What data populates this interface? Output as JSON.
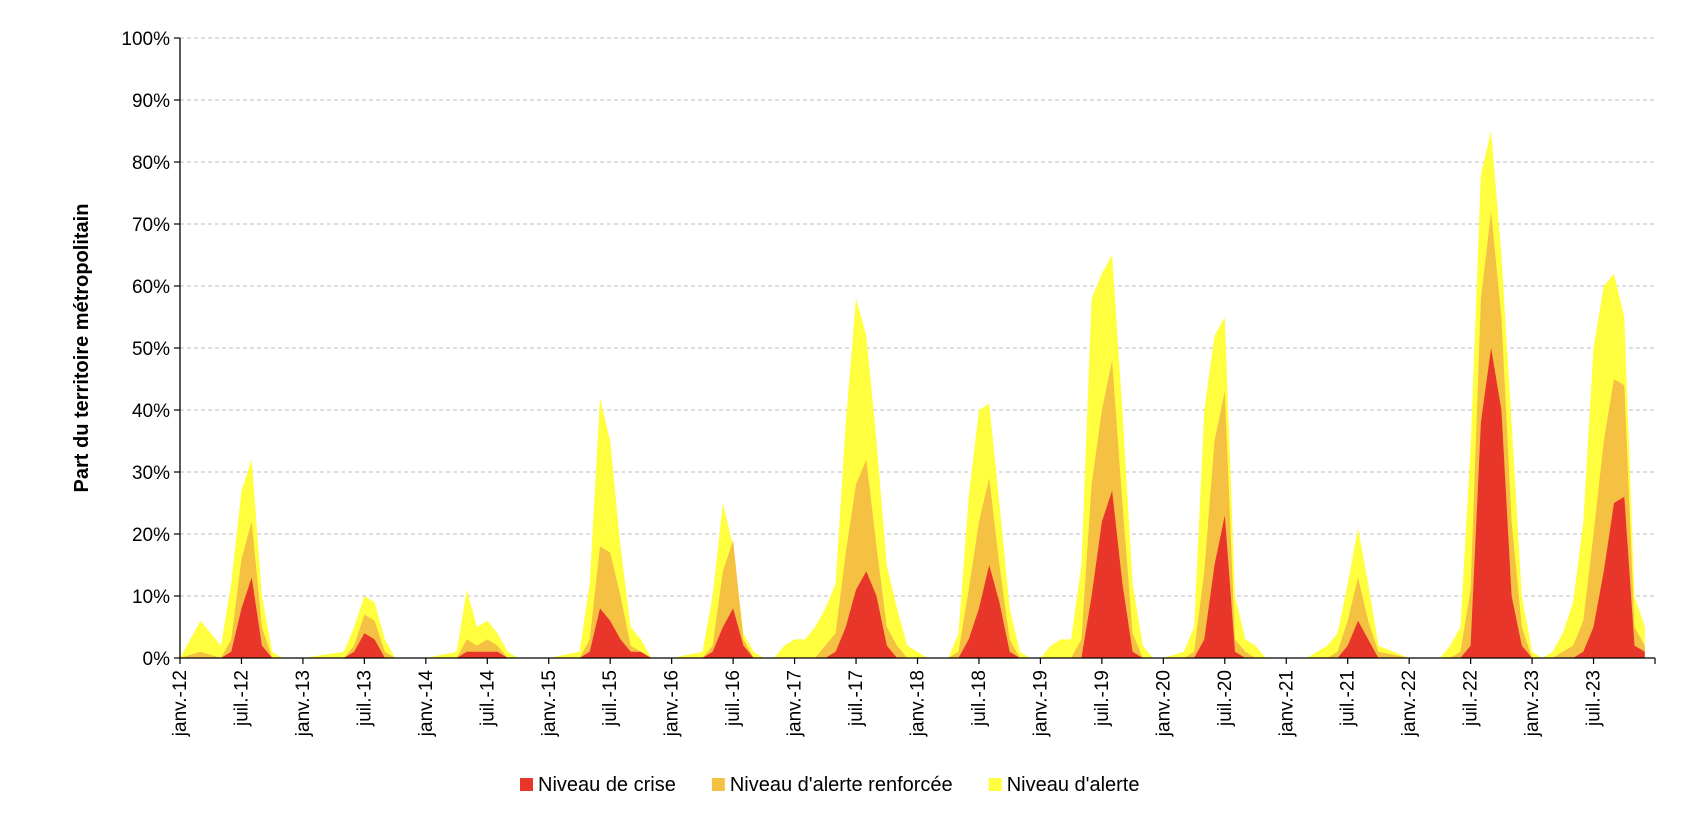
{
  "chart_data": {
    "type": "area",
    "stacking": "overlay",
    "title": "",
    "ylabel": "Part du territoire métropolitain",
    "xlabel": "",
    "ylim": [
      0,
      100
    ],
    "yticks": [
      "0%",
      "10%",
      "20%",
      "30%",
      "40%",
      "50%",
      "60%",
      "70%",
      "80%",
      "90%",
      "100%"
    ],
    "xticks": [
      "janv.-12",
      "juil.-12",
      "janv.-13",
      "juil.-13",
      "janv.-14",
      "juil.-14",
      "janv.-15",
      "juil.-15",
      "janv.-16",
      "juil.-16",
      "janv.-17",
      "juil.-17",
      "janv.-18",
      "juil.-18",
      "janv.-19",
      "juil.-19",
      "janv.-20",
      "juil.-20",
      "janv.-21",
      "juil.-21",
      "janv.-22",
      "juil.-22",
      "janv.-23",
      "juil.-23"
    ],
    "x_range": [
      "2012-01",
      "2023-12"
    ],
    "grid": "horizontal-dashed",
    "legend_position": "bottom",
    "x": [
      "2012-01",
      "2012-03",
      "2012-05",
      "2012-06",
      "2012-07",
      "2012-08",
      "2012-09",
      "2012-10",
      "2012-11",
      "2013-01",
      "2013-05",
      "2013-06",
      "2013-07",
      "2013-08",
      "2013-09",
      "2013-10",
      "2014-01",
      "2014-04",
      "2014-05",
      "2014-06",
      "2014-07",
      "2014-08",
      "2014-09",
      "2014-10",
      "2014-11",
      "2015-01",
      "2015-04",
      "2015-05",
      "2015-06",
      "2015-07",
      "2015-08",
      "2015-09",
      "2015-10",
      "2015-11",
      "2015-12",
      "2016-01",
      "2016-04",
      "2016-05",
      "2016-06",
      "2016-07",
      "2016-08",
      "2016-09",
      "2016-10",
      "2016-11",
      "2016-12",
      "2017-01",
      "2017-02",
      "2017-03",
      "2017-04",
      "2017-05",
      "2017-06",
      "2017-07",
      "2017-08",
      "2017-09",
      "2017-10",
      "2017-11",
      "2017-12",
      "2018-01",
      "2018-02",
      "2018-04",
      "2018-05",
      "2018-06",
      "2018-07",
      "2018-08",
      "2018-09",
      "2018-10",
      "2018-11",
      "2018-12",
      "2019-01",
      "2019-02",
      "2019-03",
      "2019-04",
      "2019-05",
      "2019-06",
      "2019-07",
      "2019-08",
      "2019-09",
      "2019-10",
      "2019-11",
      "2019-12",
      "2020-01",
      "2020-03",
      "2020-04",
      "2020-05",
      "2020-06",
      "2020-07",
      "2020-08",
      "2020-09",
      "2020-10",
      "2020-11",
      "2021-01",
      "2021-03",
      "2021-04",
      "2021-05",
      "2021-06",
      "2021-07",
      "2021-08",
      "2021-09",
      "2021-10",
      "2022-01",
      "2022-03",
      "2022-04",
      "2022-05",
      "2022-06",
      "2022-07",
      "2022-08",
      "2022-09",
      "2022-10",
      "2022-11",
      "2022-12",
      "2023-01",
      "2023-02",
      "2023-03",
      "2023-04",
      "2023-05",
      "2023-06",
      "2023-07",
      "2023-08",
      "2023-09",
      "2023-10",
      "2023-11",
      "2023-12"
    ],
    "series": [
      {
        "name": "Niveau d'alerte",
        "color": "#FFFF40",
        "values": [
          0,
          6,
          2,
          12,
          27,
          32,
          10,
          1,
          0,
          0,
          1,
          5,
          10,
          9,
          3,
          0,
          0,
          1,
          11,
          5,
          6,
          4,
          1,
          0,
          0,
          0,
          1,
          12,
          42,
          35,
          18,
          5,
          3,
          0,
          0,
          0,
          1,
          10,
          25,
          18,
          4,
          1,
          0,
          0,
          2,
          3,
          3,
          5,
          8,
          12,
          38,
          58,
          52,
          35,
          15,
          8,
          2,
          1,
          0,
          0,
          4,
          26,
          40,
          41,
          25,
          8,
          1,
          0,
          0,
          2,
          3,
          3,
          15,
          58,
          62,
          65,
          40,
          12,
          2,
          0,
          0,
          1,
          5,
          40,
          52,
          55,
          10,
          3,
          2,
          0,
          0,
          0,
          1,
          2,
          4,
          12,
          21,
          12,
          2,
          0,
          0,
          0,
          2,
          5,
          34,
          78,
          85,
          65,
          38,
          10,
          1,
          0,
          1,
          4,
          9,
          22,
          50,
          60,
          62,
          55,
          10,
          5
        ]
      },
      {
        "name": "Niveau d'alerte renforcée",
        "color": "#F5C142",
        "values": [
          0,
          1,
          0,
          3,
          16,
          22,
          5,
          0,
          0,
          0,
          0,
          2,
          7,
          6,
          1,
          0,
          0,
          0,
          3,
          2,
          3,
          2,
          0,
          0,
          0,
          0,
          0,
          3,
          18,
          17,
          10,
          2,
          1,
          0,
          0,
          0,
          0,
          2,
          14,
          19,
          3,
          0,
          0,
          0,
          0,
          0,
          0,
          0,
          2,
          4,
          17,
          28,
          32,
          18,
          5,
          2,
          0,
          0,
          0,
          0,
          1,
          11,
          22,
          29,
          15,
          3,
          0,
          0,
          0,
          0,
          0,
          0,
          3,
          28,
          40,
          48,
          25,
          4,
          0,
          0,
          0,
          0,
          1,
          14,
          35,
          43,
          3,
          1,
          0,
          0,
          0,
          0,
          0,
          0,
          1,
          6,
          13,
          6,
          1,
          0,
          0,
          0,
          0,
          1,
          11,
          58,
          72,
          55,
          22,
          5,
          0,
          0,
          0,
          1,
          2,
          6,
          20,
          35,
          45,
          44,
          5,
          2
        ]
      },
      {
        "name": "Niveau de crise",
        "color": "#E8372A",
        "values": [
          0,
          0,
          0,
          1,
          8,
          13,
          2,
          0,
          0,
          0,
          0,
          1,
          4,
          3,
          0,
          0,
          0,
          0,
          1,
          1,
          1,
          1,
          0,
          0,
          0,
          0,
          0,
          1,
          8,
          6,
          3,
          1,
          1,
          0,
          0,
          0,
          0,
          1,
          5,
          8,
          2,
          0,
          0,
          0,
          0,
          0,
          0,
          0,
          0,
          1,
          5,
          11,
          14,
          10,
          2,
          0,
          0,
          0,
          0,
          0,
          0,
          3,
          8,
          15,
          9,
          1,
          0,
          0,
          0,
          0,
          0,
          0,
          0,
          10,
          22,
          27,
          12,
          1,
          0,
          0,
          0,
          0,
          0,
          3,
          15,
          23,
          1,
          0,
          0,
          0,
          0,
          0,
          0,
          0,
          0,
          2,
          6,
          3,
          0,
          0,
          0,
          0,
          0,
          0,
          2,
          38,
          50,
          40,
          10,
          2,
          0,
          0,
          0,
          0,
          0,
          1,
          5,
          14,
          25,
          26,
          2,
          1
        ]
      }
    ]
  }
}
